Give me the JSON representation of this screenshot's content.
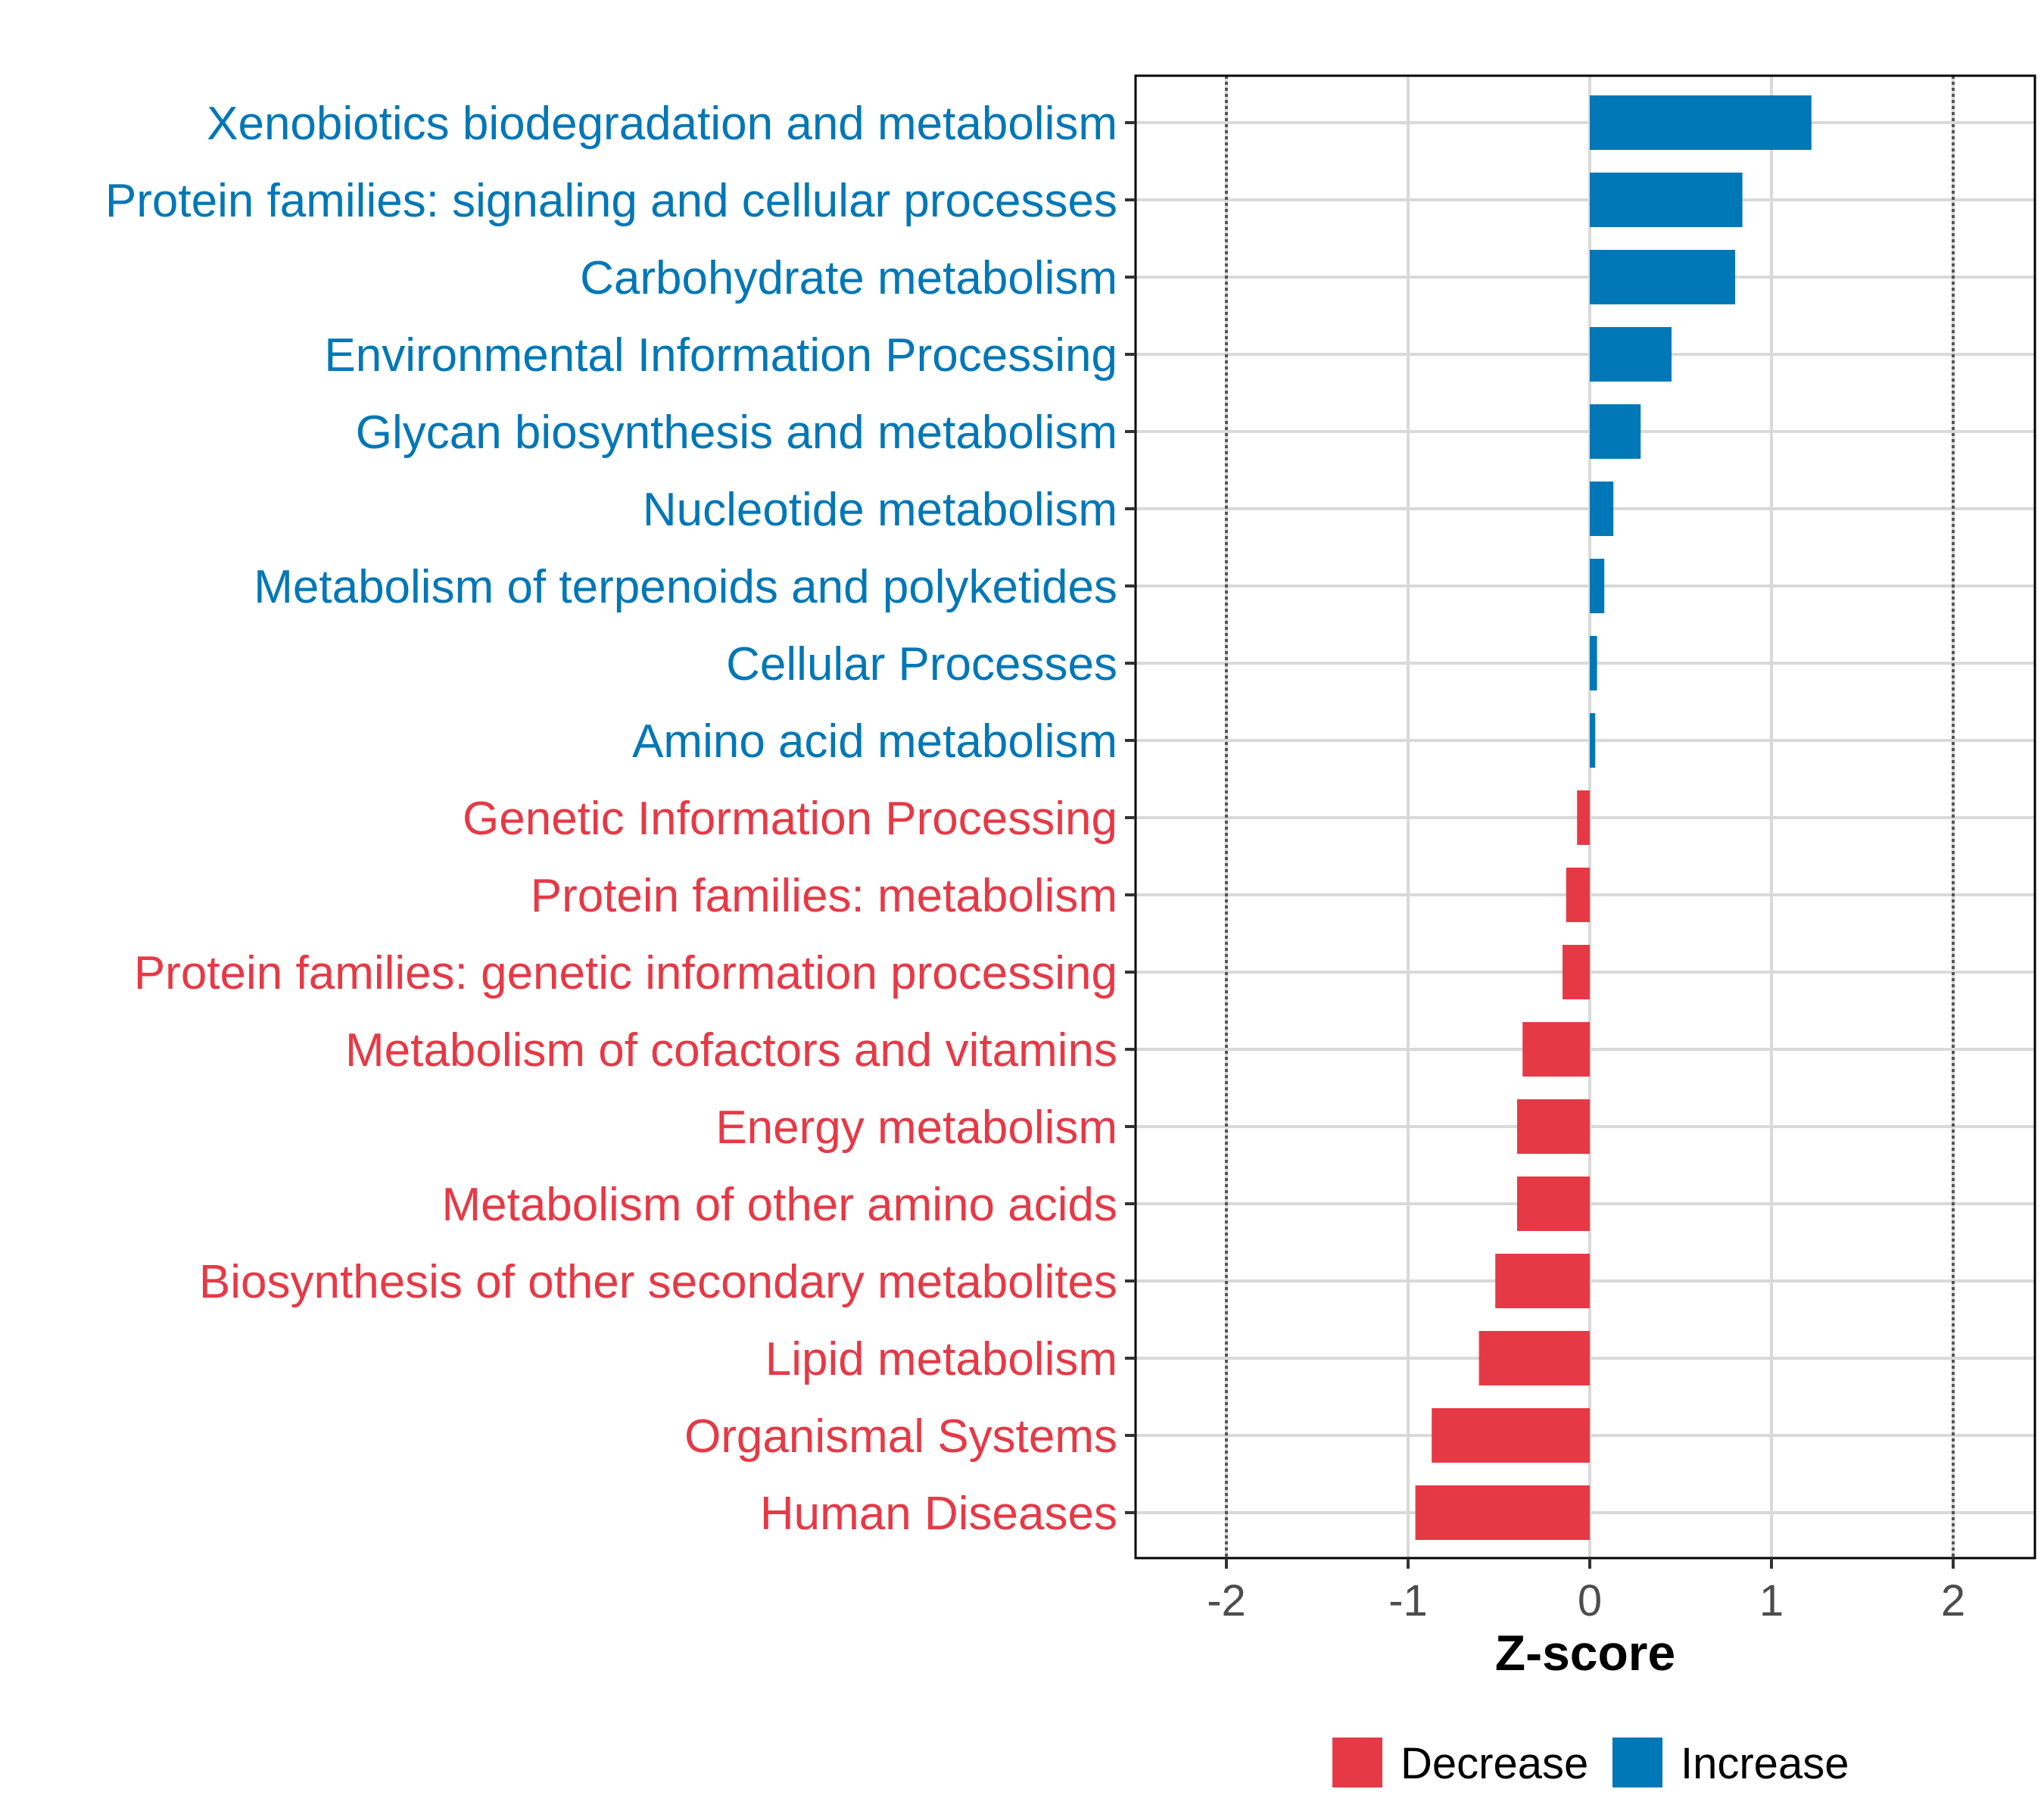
{
  "chart_data": {
    "type": "bar",
    "orientation": "horizontal",
    "title": "",
    "xlabel": "Z-score",
    "ylabel": "",
    "xlim": [
      -2.5,
      2.45
    ],
    "x_ticks": [
      -2,
      -1,
      0,
      1,
      2
    ],
    "x_tick_labels": [
      "-2",
      "-1",
      "0",
      "1",
      "2"
    ],
    "reference_lines": [
      -2,
      2
    ],
    "grid": true,
    "legend_position": "bottom",
    "colors": {
      "Decrease": "#e63946",
      "Increase": "#0077b6"
    },
    "categories": [
      "Xenobiotics biodegradation and metabolism",
      "Protein families: signaling and cellular processes",
      "Carbohydrate metabolism",
      "Environmental Information Processing",
      "Glycan biosynthesis and metabolism",
      "Nucleotide metabolism",
      "Metabolism of terpenoids and polyketides",
      "Cellular Processes",
      "Amino acid metabolism",
      "Genetic Information Processing",
      "Protein families: metabolism",
      "Protein families: genetic information processing",
      "Metabolism of cofactors and vitamins",
      "Energy metabolism",
      "Metabolism of other amino acids",
      "Biosynthesis of other secondary metabolites",
      "Lipid metabolism",
      "Organismal Systems",
      "Human Diseases"
    ],
    "values": [
      1.22,
      0.84,
      0.8,
      0.45,
      0.28,
      0.13,
      0.08,
      0.04,
      0.03,
      -0.07,
      -0.13,
      -0.15,
      -0.37,
      -0.4,
      -0.4,
      -0.52,
      -0.61,
      -0.87,
      -0.96
    ],
    "groups": [
      "Increase",
      "Increase",
      "Increase",
      "Increase",
      "Increase",
      "Increase",
      "Increase",
      "Increase",
      "Increase",
      "Decrease",
      "Decrease",
      "Decrease",
      "Decrease",
      "Decrease",
      "Decrease",
      "Decrease",
      "Decrease",
      "Decrease",
      "Decrease"
    ],
    "legend": [
      "Decrease",
      "Increase"
    ]
  }
}
